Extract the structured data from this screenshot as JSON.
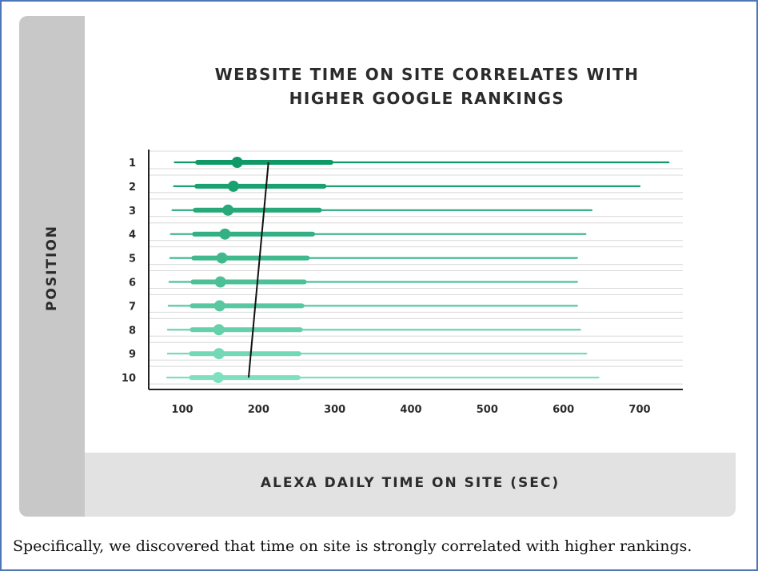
{
  "chart_data": {
    "type": "range_dot",
    "title_lines": [
      "WEBSITE TIME ON SITE CORRELATES WITH",
      "HIGHER GOOGLE RANKINGS"
    ],
    "xlabel": "ALEXA DAILY TIME ON SITE (SEC)",
    "ylabel": "POSITION",
    "xlim": [
      60,
      760
    ],
    "xticks": [
      100,
      200,
      300,
      400,
      500,
      600,
      700
    ],
    "grid": "horizontal",
    "categories": [
      "1",
      "2",
      "3",
      "4",
      "5",
      "6",
      "7",
      "8",
      "9",
      "10"
    ],
    "rows": [
      {
        "position": "1",
        "min": 90,
        "q1": 120,
        "median": 172,
        "q3": 295,
        "max": 738
      },
      {
        "position": "2",
        "min": 89,
        "q1": 119,
        "median": 167,
        "q3": 286,
        "max": 700
      },
      {
        "position": "3",
        "min": 87,
        "q1": 117,
        "median": 160,
        "q3": 280,
        "max": 637
      },
      {
        "position": "4",
        "min": 85,
        "q1": 116,
        "median": 156,
        "q3": 271,
        "max": 629
      },
      {
        "position": "5",
        "min": 84,
        "q1": 115,
        "median": 152,
        "q3": 264,
        "max": 618
      },
      {
        "position": "6",
        "min": 83,
        "q1": 114,
        "median": 150,
        "q3": 260,
        "max": 618
      },
      {
        "position": "7",
        "min": 82,
        "q1": 113,
        "median": 149,
        "q3": 257,
        "max": 618
      },
      {
        "position": "8",
        "min": 81,
        "q1": 113,
        "median": 148,
        "q3": 255,
        "max": 622
      },
      {
        "position": "9",
        "min": 81,
        "q1": 112,
        "median": 148,
        "q3": 253,
        "max": 630
      },
      {
        "position": "10",
        "min": 80,
        "q1": 112,
        "median": 147,
        "q3": 252,
        "max": 646
      }
    ],
    "trend_line": {
      "from": {
        "position": "1",
        "x": 213
      },
      "to": {
        "position": "10",
        "x": 187
      }
    },
    "colors": {
      "dark": "#0e9966",
      "light": "#7fe0bf",
      "trend": "#111111",
      "grid": "#d8d8d8",
      "axis": "#222222"
    }
  },
  "caption": "Specifically, we discovered that time on site is strongly correlated with higher rankings."
}
